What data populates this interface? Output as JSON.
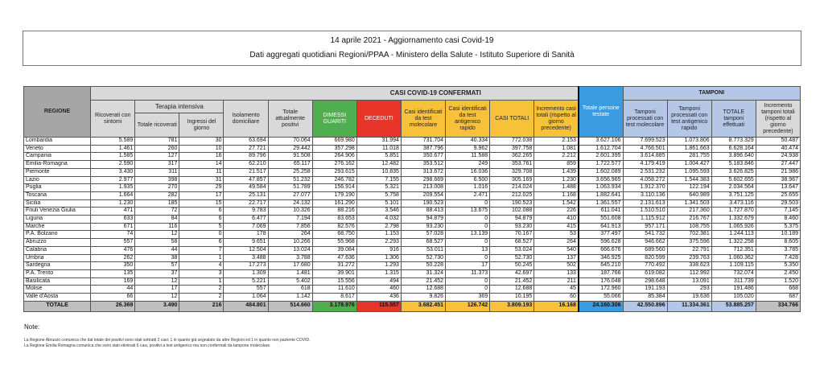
{
  "header": {
    "title": "14 aprile 2021 - Aggiornamento casi Covid-19",
    "subtitle": "Dati aggregati quotidiani Regioni/PPAA - Ministero della Salute - Istituto Superiore di Sanità"
  },
  "table": {
    "group_headers": {
      "regione": "REGIONE",
      "casi": "CASI COVID-19 CONFERMATI",
      "terapia": "Terapia intensiva",
      "tamponi": "TAMPONI"
    },
    "columns": [
      "Ricoverati con sintomi",
      "Totale ricoverati",
      "Ingressi del giorno",
      "Isolamento domiciliare",
      "Totale attualmente positivi",
      "DIMESSI GUARITI",
      "DECEDUTI",
      "Casi identificati da test molecolare",
      "Casi identificati da test antigenico rapido",
      "CASI TOTALI",
      "Incremento casi totali (rispetto al giorno precedente)",
      "Totale persone testate",
      "Tamponi processati con test molecolare",
      "Tamponi processati con test antigenico rapido",
      "TOTALE tamponi effettuati",
      "Incremento tamponi totali (rispetto al giorno precedente)"
    ],
    "rows": [
      [
        "Lombardia",
        "5.589",
        "781",
        "30",
        "63.694",
        "70.064",
        "669.980",
        "31.994",
        "731.704",
        "40.334",
        "772.038",
        "2.153",
        "3.627.106",
        "7.699.523",
        "1.073.806",
        "8.773.329",
        "50.487"
      ],
      [
        "Veneto",
        "1.461",
        "260",
        "10",
        "27.721",
        "29.442",
        "357.298",
        "11.018",
        "387.796",
        "9.962",
        "397.758",
        "1.081",
        "1.612.704",
        "4.766.501",
        "1.861.663",
        "6.628.164",
        "40.474"
      ],
      [
        "Campania",
        "1.585",
        "127",
        "16",
        "89.796",
        "91.508",
        "264.906",
        "5.851",
        "350.677",
        "11.588",
        "362.265",
        "2.212",
        "2.601.395",
        "3.614.885",
        "281.755",
        "3.896.640",
        "24.938"
      ],
      [
        "Emilia-Romagna",
        "2.590",
        "317",
        "14",
        "62.210",
        "65.117",
        "276.162",
        "12.482",
        "353.512",
        "249",
        "353.761",
        "859",
        "1.722.577",
        "4.179.419",
        "1.004.427",
        "5.183.846",
        "27.447"
      ],
      [
        "Piemonte",
        "3.430",
        "311",
        "11",
        "21.517",
        "25.258",
        "293.615",
        "10.835",
        "313.672",
        "16.036",
        "329.708",
        "1.439",
        "1.602.089",
        "2.531.232",
        "1.095.593",
        "3.626.825",
        "21.986"
      ],
      [
        "Lazio",
        "2.977",
        "398",
        "31",
        "47.857",
        "51.232",
        "246.782",
        "7.155",
        "298.669",
        "6.500",
        "305.169",
        "1.230",
        "3.656.965",
        "4.058.272",
        "1.544.383",
        "5.602.655",
        "38.967"
      ],
      [
        "Puglia",
        "1.935",
        "270",
        "29",
        "49.584",
        "51.789",
        "156.914",
        "5.321",
        "213.008",
        "1.016",
        "214.024",
        "1.488",
        "1.063.934",
        "1.912.370",
        "122.194",
        "2.034.564",
        "13.647"
      ],
      [
        "Toscana",
        "1.664",
        "282",
        "17",
        "25.131",
        "27.077",
        "179.190",
        "5.758",
        "209.554",
        "2.471",
        "212.025",
        "1.168",
        "1.882.641",
        "3.110.136",
        "640.989",
        "3.751.125",
        "25.655"
      ],
      [
        "Sicilia",
        "1.230",
        "185",
        "15",
        "22.717",
        "24.132",
        "161.290",
        "5.101",
        "190.523",
        "0",
        "190.523",
        "1.542",
        "1.361.557",
        "2.131.613",
        "1.341.503",
        "3.473.116",
        "29.503"
      ],
      [
        "Friuli Venezia Giulia",
        "471",
        "72",
        "6",
        "9.783",
        "10.326",
        "88.216",
        "3.546",
        "88.413",
        "13.675",
        "102.088",
        "226",
        "611.041",
        "1.510.510",
        "217.360",
        "1.727.870",
        "7.145"
      ],
      [
        "Liguria",
        "633",
        "84",
        "6",
        "6.477",
        "7.194",
        "83.653",
        "4.032",
        "94.879",
        "0",
        "94.879",
        "410",
        "551.608",
        "1.115.912",
        "216.767",
        "1.332.679",
        "8.460"
      ],
      [
        "Marche",
        "671",
        "116",
        "5",
        "7.069",
        "7.856",
        "82.576",
        "2.798",
        "93.230",
        "0",
        "93.230",
        "415",
        "641.913",
        "957.171",
        "108.755",
        "1.065.926",
        "5.375"
      ],
      [
        "P.A. Bolzano",
        "74",
        "12",
        "0",
        "178",
        "264",
        "68.750",
        "1.153",
        "57.028",
        "13.139",
        "70.167",
        "53",
        "377.497",
        "541.732",
        "702.381",
        "1.244.113",
        "10.189"
      ],
      [
        "Abruzzo",
        "557",
        "58",
        "6",
        "9.651",
        "10.266",
        "55.968",
        "2.293",
        "68.527",
        "0",
        "68.527",
        "264",
        "596.628",
        "946.662",
        "375.596",
        "1.322.258",
        "8.605"
      ],
      [
        "Calabria",
        "476",
        "44",
        "7",
        "12.504",
        "13.024",
        "39.084",
        "916",
        "53.011",
        "13",
        "53.024",
        "540",
        "666.676",
        "689.560",
        "22.791",
        "712.351",
        "3.785"
      ],
      [
        "Umbria",
        "262",
        "38",
        "1",
        "3.488",
        "3.788",
        "47.636",
        "1.306",
        "52.730",
        "0",
        "52.730",
        "137",
        "346.925",
        "820.599",
        "239.763",
        "1.060.362",
        "7.428"
      ],
      [
        "Sardegna",
        "350",
        "57",
        "4",
        "17.273",
        "17.680",
        "31.272",
        "1.293",
        "50.228",
        "17",
        "50.245",
        "502",
        "645.210",
        "770.492",
        "338.623",
        "1.109.115",
        "5.350"
      ],
      [
        "P.A. Trento",
        "135",
        "37",
        "3",
        "1.309",
        "1.481",
        "39.901",
        "1.315",
        "31.324",
        "11.373",
        "42.697",
        "133",
        "187.766",
        "619.082",
        "112.992",
        "732.074",
        "2.450"
      ],
      [
        "Basilicata",
        "169",
        "12",
        "1",
        "5.221",
        "5.402",
        "15.556",
        "494",
        "21.452",
        "0",
        "21.452",
        "211",
        "176.048",
        "298.648",
        "13.091",
        "311.739",
        "1.520"
      ],
      [
        "Molise",
        "44",
        "17",
        "2",
        "557",
        "618",
        "11.610",
        "460",
        "12.688",
        "0",
        "12.688",
        "45",
        "172.960",
        "191.193",
        "293",
        "191.486",
        "668"
      ],
      [
        "Valle d'Aosta",
        "66",
        "12",
        "2",
        "1.064",
        "1.142",
        "8.617",
        "436",
        "9.826",
        "369",
        "10.195",
        "60",
        "55.066",
        "85.384",
        "19.636",
        "105.020",
        "687"
      ]
    ],
    "total": [
      "TOTALE",
      "26.369",
      "3.490",
      "216",
      "484.801",
      "514.660",
      "3.178.976",
      "115.557",
      "3.682.451",
      "126.742",
      "3.809.193",
      "16.168",
      "24.160.306",
      "42.550.896",
      "11.334.361",
      "53.885.257",
      "334.766"
    ]
  },
  "notes": {
    "title": "Note:",
    "lines": [
      "La Regione Abruzzo comunica che dal totale dei positivi sono stati sottratti 2 casi: 1 in quanto già segnalato da altre Regioni ed 1 in quanto non paziente COVID.",
      "La Regione Emilia Romagna comunica che sono stati eliminati 6 casi, positivi a test antigenico ma non confermati da tampone molecolare."
    ]
  },
  "colors": {
    "guariti": "#4fae4f",
    "deceduti": "#e8352a",
    "casi": "#f8c13a",
    "persone_testate": "#3a9be0",
    "tamponi": "#b4c7e7",
    "header_gray": "#d9d9d9"
  }
}
